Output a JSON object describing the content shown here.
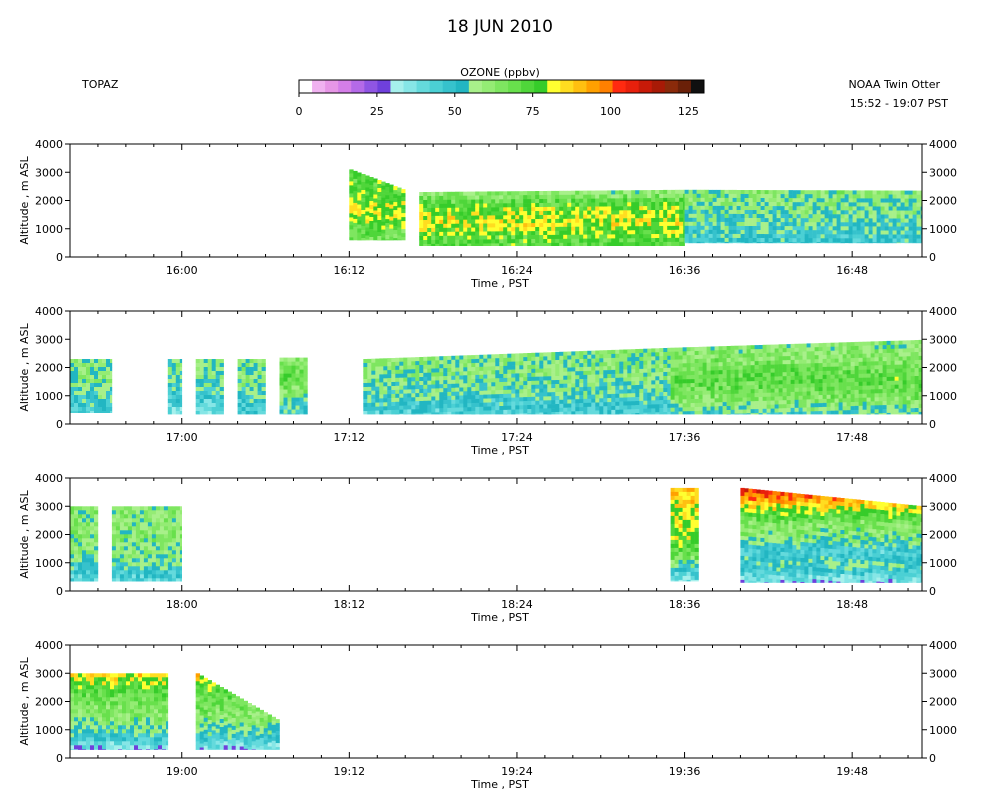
{
  "header": {
    "date": "18 JUN 2010",
    "instrument": "TOPAZ",
    "platform": "NOAA Twin Otter",
    "time_range": "15:52 - 19:07 PST"
  },
  "colorbar": {
    "title": "OZONE (ppbv)",
    "ticks": [
      "0",
      "25",
      "50",
      "75",
      "100",
      "125"
    ],
    "range": [
      0,
      130
    ],
    "colors": [
      "#ffffff",
      "#f0b2f0",
      "#e696e6",
      "#d47ee8",
      "#b46ae8",
      "#8f55e3",
      "#6f40dc",
      "#a6f0ec",
      "#86e6e6",
      "#64dadc",
      "#4bd0d4",
      "#36c2cc",
      "#22b6c2",
      "#a8f08a",
      "#94ec74",
      "#7ee660",
      "#68e04c",
      "#4fd63a",
      "#36cc2a",
      "#ffff30",
      "#ffdd20",
      "#ffc010",
      "#ffa000",
      "#ff8000",
      "#ff2a10",
      "#e8200c",
      "#c81a08",
      "#a81a06",
      "#8a2a0a",
      "#6a2008",
      "#101010"
    ]
  },
  "chart_data": [
    {
      "type": "heatmap",
      "panel": 1,
      "xlabel": "Time , PST",
      "ylabel": "Altitude , m ASL",
      "xlim": [
        "15:52",
        "16:53"
      ],
      "ylim": [
        0,
        4000
      ],
      "x_tick_labels": [
        "16:00",
        "16:12",
        "16:24",
        "16:36",
        "16:48"
      ],
      "y_tick_labels": [
        "0",
        "1000",
        "2000",
        "3000",
        "4000"
      ],
      "segments": [
        {
          "start": "16:12",
          "end": "16:16",
          "bottom_m": 600,
          "top_m_start": 3100,
          "top_m_end": 2350,
          "ozone_profile": [
            [
              0,
              60
            ],
            [
              900,
              70
            ],
            [
              1500,
              82
            ],
            [
              2100,
              76
            ],
            [
              3200,
              70
            ]
          ]
        },
        {
          "start": "16:17",
          "end": "16:36",
          "bottom_m": 400,
          "top_m_start": 2300,
          "top_m_end": 2380,
          "ozone_profile": [
            [
              0,
              68
            ],
            [
              700,
              74
            ],
            [
              1200,
              82
            ],
            [
              1700,
              78
            ],
            [
              2100,
              66
            ],
            [
              2400,
              60
            ]
          ]
        },
        {
          "start": "16:36",
          "end": "16:53",
          "bottom_m": 500,
          "top_m_start": 2380,
          "top_m_end": 2350,
          "ozone_profile": [
            [
              0,
              44
            ],
            [
              700,
              48
            ],
            [
              1100,
              52
            ],
            [
              1600,
              57
            ],
            [
              2400,
              60
            ]
          ]
        }
      ]
    },
    {
      "type": "heatmap",
      "panel": 2,
      "xlabel": "Time , PST",
      "ylabel": "Altitude , m ASL",
      "xlim": [
        "16:52",
        "17:53"
      ],
      "ylim": [
        0,
        4000
      ],
      "x_tick_labels": [
        "17:00",
        "17:12",
        "17:24",
        "17:36",
        "17:48"
      ],
      "y_tick_labels": [
        "0",
        "1000",
        "2000",
        "3000",
        "4000"
      ],
      "segments": [
        {
          "start": "16:52",
          "end": "16:55",
          "bottom_m": 400,
          "top_m_start": 2300,
          "top_m_end": 2300,
          "ozone_profile": [
            [
              0,
              38
            ],
            [
              500,
              44
            ],
            [
              1000,
              52
            ],
            [
              1600,
              58
            ],
            [
              2300,
              60
            ]
          ]
        },
        {
          "start": "16:59",
          "end": "17:00",
          "bottom_m": 350,
          "top_m_start": 2300,
          "top_m_end": 2300,
          "ozone_profile": [
            [
              0,
              30
            ],
            [
              600,
              40
            ],
            [
              1200,
              50
            ],
            [
              2300,
              58
            ]
          ]
        },
        {
          "start": "17:01",
          "end": "17:03",
          "bottom_m": 350,
          "top_m_start": 2300,
          "top_m_end": 2300,
          "ozone_profile": [
            [
              0,
              24
            ],
            [
              500,
              38
            ],
            [
              1000,
              48
            ],
            [
              1600,
              55
            ],
            [
              2300,
              58
            ]
          ]
        },
        {
          "start": "17:04",
          "end": "17:06",
          "bottom_m": 350,
          "top_m_start": 2300,
          "top_m_end": 2300,
          "ozone_profile": [
            [
              0,
              40
            ],
            [
              600,
              46
            ],
            [
              1400,
              56
            ],
            [
              2300,
              60
            ]
          ]
        },
        {
          "start": "17:07",
          "end": "17:09",
          "bottom_m": 350,
          "top_m_start": 2350,
          "top_m_end": 2350,
          "ozone_profile": [
            [
              0,
              44
            ],
            [
              600,
              50
            ],
            [
              1300,
              64
            ],
            [
              1700,
              70
            ],
            [
              2350,
              60
            ]
          ]
        },
        {
          "start": "17:13",
          "end": "17:35",
          "bottom_m": 350,
          "top_m_start": 2300,
          "top_m_end": 2700,
          "ozone_profile": [
            [
              0,
              40
            ],
            [
              600,
              46
            ],
            [
              1000,
              52
            ],
            [
              1800,
              58
            ],
            [
              2700,
              60
            ]
          ]
        },
        {
          "start": "17:35",
          "end": "17:53",
          "bottom_m": 350,
          "top_m_start": 2700,
          "top_m_end": 2980,
          "ozone_profile": [
            [
              0,
              42
            ],
            [
              500,
              56
            ],
            [
              1000,
              66
            ],
            [
              1600,
              72
            ],
            [
              2200,
              64
            ],
            [
              3000,
              60
            ]
          ]
        }
      ]
    },
    {
      "type": "heatmap",
      "panel": 3,
      "xlabel": "Time , PST",
      "ylabel": "Altitude , m ASL",
      "xlim": [
        "17:52",
        "18:53"
      ],
      "ylim": [
        0,
        4000
      ],
      "x_tick_labels": [
        "18:00",
        "18:12",
        "18:24",
        "18:36",
        "18:48"
      ],
      "y_tick_labels": [
        "0",
        "1000",
        "2000",
        "3000",
        "4000"
      ],
      "segments": [
        {
          "start": "17:52",
          "end": "17:54",
          "bottom_m": 350,
          "top_m_start": 3000,
          "top_m_end": 3000,
          "ozone_profile": [
            [
              0,
              36
            ],
            [
              600,
              44
            ],
            [
              1100,
              56
            ],
            [
              2000,
              62
            ],
            [
              3000,
              60
            ]
          ]
        },
        {
          "start": "17:55",
          "end": "18:00",
          "bottom_m": 350,
          "top_m_start": 3000,
          "top_m_end": 3000,
          "ozone_profile": [
            [
              0,
              34
            ],
            [
              600,
              46
            ],
            [
              1200,
              58
            ],
            [
              2000,
              62
            ],
            [
              3000,
              60
            ]
          ]
        },
        {
          "start": "18:35",
          "end": "18:37",
          "bottom_m": 350,
          "top_m_start": 3650,
          "top_m_end": 3650,
          "ozone_profile": [
            [
              0,
              30
            ],
            [
              700,
              44
            ],
            [
              1200,
              66
            ],
            [
              1800,
              78
            ],
            [
              2600,
              82
            ],
            [
              3300,
              86
            ],
            [
              3650,
              88
            ]
          ]
        },
        {
          "start": "18:40",
          "end": "18:53",
          "bottom_m": 300,
          "top_m_start": 3650,
          "top_m_end": 3000,
          "ozone_profile": [
            [
              0,
              22
            ],
            [
              500,
              40
            ],
            [
              900,
              52
            ],
            [
              1400,
              44
            ],
            [
              1800,
              58
            ],
            [
              2400,
              64
            ],
            [
              2800,
              78
            ],
            [
              3200,
              92
            ],
            [
              3650,
              112
            ]
          ]
        }
      ]
    },
    {
      "type": "heatmap",
      "panel": 4,
      "xlabel": "Time , PST",
      "ylabel": "Altitude , m ASL",
      "xlim": [
        "18:52",
        "19:53"
      ],
      "ylim": [
        0,
        4000
      ],
      "x_tick_labels": [
        "19:00",
        "19:12",
        "19:24",
        "19:36",
        "19:48"
      ],
      "y_tick_labels": [
        "0",
        "1000",
        "2000",
        "3000",
        "4000"
      ],
      "segments": [
        {
          "start": "18:52",
          "end": "18:59",
          "bottom_m": 300,
          "top_m_start": 3000,
          "top_m_end": 3000,
          "ozone_profile": [
            [
              0,
              22
            ],
            [
              400,
              36
            ],
            [
              900,
              54
            ],
            [
              1600,
              64
            ],
            [
              2300,
              70
            ],
            [
              2700,
              80
            ],
            [
              3000,
              86
            ]
          ]
        },
        {
          "start": "19:01",
          "end": "19:07",
          "bottom_m": 300,
          "top_m_start": 3000,
          "top_m_end": 1300,
          "ozone_profile": [
            [
              0,
              22
            ],
            [
              400,
              36
            ],
            [
              900,
              54
            ],
            [
              1600,
              64
            ],
            [
              2300,
              70
            ],
            [
              2700,
              80
            ],
            [
              3000,
              92
            ]
          ]
        }
      ]
    }
  ]
}
